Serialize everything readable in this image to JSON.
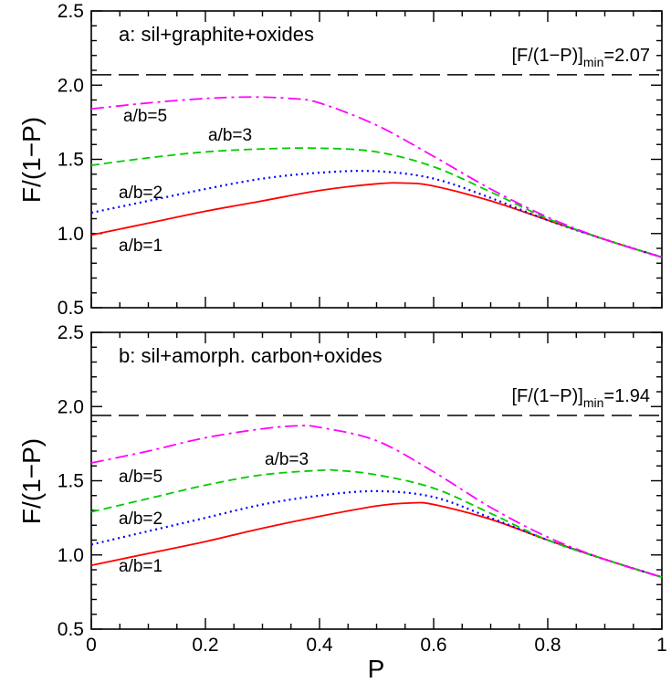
{
  "chart_data": [
    {
      "type": "line",
      "title": "a: sil+graphite+oxides",
      "xlabel": "P",
      "ylabel": "F/(1−P)",
      "xlim": [
        0,
        1
      ],
      "ylim": [
        0.5,
        2.5
      ],
      "xticks": [
        0,
        0.2,
        0.4,
        0.6,
        0.8,
        1
      ],
      "yticks": [
        0.5,
        1.0,
        1.5,
        2.0,
        2.5
      ],
      "xtick_labels": [
        "0",
        "0.2",
        "0.4",
        "0.6",
        "0.8",
        "1"
      ],
      "ytick_labels": [
        "0.5",
        "1.0",
        "1.5",
        "2.0",
        "2.5"
      ],
      "min_line": {
        "value": 2.07,
        "label_main": "[F/(1−P)]",
        "label_sub": "min",
        "label_value": "=2.07",
        "color": "#000000"
      },
      "series": [
        {
          "name": "a/b=1",
          "color": "#ff0000",
          "style": "solid",
          "x": [
            0,
            0.1,
            0.2,
            0.3,
            0.4,
            0.5,
            0.55,
            0.6,
            0.7,
            0.8,
            0.9,
            1.0
          ],
          "y": [
            0.99,
            1.07,
            1.15,
            1.22,
            1.29,
            1.335,
            1.34,
            1.32,
            1.22,
            1.09,
            0.96,
            0.84
          ]
        },
        {
          "name": "a/b=2",
          "color": "#0000ff",
          "style": "dotted",
          "x": [
            0,
            0.1,
            0.2,
            0.3,
            0.4,
            0.5,
            0.6,
            0.7,
            0.8,
            0.9,
            1.0
          ],
          "y": [
            1.14,
            1.22,
            1.3,
            1.37,
            1.41,
            1.42,
            1.37,
            1.24,
            1.09,
            0.96,
            0.84
          ]
        },
        {
          "name": "a/b=3",
          "color": "#00cc00",
          "style": "dashed",
          "x": [
            0,
            0.1,
            0.2,
            0.3,
            0.4,
            0.5,
            0.6,
            0.7,
            0.8,
            0.9,
            1.0
          ],
          "y": [
            1.46,
            1.51,
            1.55,
            1.57,
            1.575,
            1.55,
            1.45,
            1.28,
            1.1,
            0.96,
            0.84
          ]
        },
        {
          "name": "a/b=5",
          "color": "#ff00ff",
          "style": "dashdot",
          "x": [
            0,
            0.1,
            0.2,
            0.28,
            0.35,
            0.4,
            0.5,
            0.6,
            0.7,
            0.8,
            0.9,
            1.0
          ],
          "y": [
            1.84,
            1.88,
            1.91,
            1.92,
            1.91,
            1.88,
            1.73,
            1.52,
            1.3,
            1.11,
            0.96,
            0.84
          ]
        }
      ]
    },
    {
      "type": "line",
      "title": "b: sil+amorph. carbon+oxides",
      "xlabel": "P",
      "ylabel": "F/(1−P)",
      "xlim": [
        0,
        1
      ],
      "ylim": [
        0.5,
        2.5
      ],
      "xticks": [
        0,
        0.2,
        0.4,
        0.6,
        0.8,
        1
      ],
      "yticks": [
        0.5,
        1.0,
        1.5,
        2.0,
        2.5
      ],
      "xtick_labels": [
        "0",
        "0.2",
        "0.4",
        "0.6",
        "0.8",
        "1"
      ],
      "ytick_labels": [
        "0.5",
        "1.0",
        "1.5",
        "2.0",
        "2.5"
      ],
      "min_line": {
        "value": 1.94,
        "label_main": "[F/(1−P)]",
        "label_sub": "min",
        "label_value": "=1.94",
        "color": "#000000"
      },
      "series": [
        {
          "name": "a/b=1",
          "color": "#ff0000",
          "style": "solid",
          "x": [
            0,
            0.1,
            0.2,
            0.3,
            0.4,
            0.5,
            0.56,
            0.6,
            0.7,
            0.8,
            0.9,
            1.0
          ],
          "y": [
            0.93,
            1.01,
            1.09,
            1.18,
            1.26,
            1.33,
            1.35,
            1.34,
            1.24,
            1.1,
            0.97,
            0.85
          ]
        },
        {
          "name": "a/b=2",
          "color": "#0000ff",
          "style": "dotted",
          "x": [
            0,
            0.1,
            0.2,
            0.3,
            0.4,
            0.5,
            0.6,
            0.7,
            0.8,
            0.9,
            1.0
          ],
          "y": [
            1.07,
            1.16,
            1.25,
            1.34,
            1.4,
            1.43,
            1.39,
            1.25,
            1.1,
            0.97,
            0.85
          ]
        },
        {
          "name": "a/b=3",
          "color": "#00cc00",
          "style": "dashed",
          "x": [
            0,
            0.1,
            0.2,
            0.3,
            0.4,
            0.43,
            0.5,
            0.6,
            0.7,
            0.8,
            0.9,
            1.0
          ],
          "y": [
            1.29,
            1.38,
            1.47,
            1.54,
            1.57,
            1.57,
            1.54,
            1.45,
            1.28,
            1.1,
            0.97,
            0.85
          ]
        },
        {
          "name": "a/b=5",
          "color": "#ff00ff",
          "style": "dashdot",
          "x": [
            0,
            0.1,
            0.2,
            0.3,
            0.36,
            0.4,
            0.5,
            0.6,
            0.7,
            0.8,
            0.9,
            1.0
          ],
          "y": [
            1.62,
            1.7,
            1.79,
            1.85,
            1.87,
            1.86,
            1.77,
            1.56,
            1.32,
            1.12,
            0.97,
            0.85
          ]
        }
      ]
    }
  ]
}
